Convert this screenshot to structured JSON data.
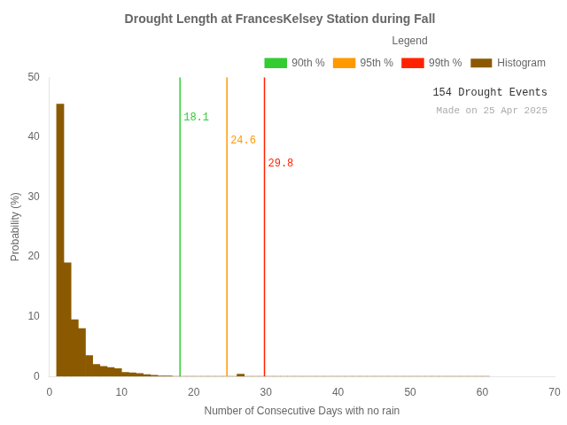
{
  "chart_data": {
    "type": "histogram",
    "title": "Drought Length at FrancesKelsey Station during Fall",
    "xlabel": "Number of Consecutive Days with no rain",
    "ylabel": "Probability (%)",
    "name": "Histogram",
    "color": "#8B5A00",
    "bins": [
      1,
      2,
      3,
      4,
      5,
      6,
      7,
      8,
      9,
      10,
      11,
      12,
      13,
      14,
      15,
      16,
      17,
      18,
      19,
      20,
      21,
      22,
      23,
      24,
      25,
      26,
      27,
      28,
      29,
      30,
      31,
      32,
      33,
      34,
      35,
      36,
      37,
      38,
      39,
      40,
      41,
      42,
      43,
      44,
      45,
      46,
      47,
      48,
      49,
      50,
      51,
      52,
      53,
      54,
      55,
      56,
      57,
      58,
      59,
      60,
      61
    ],
    "values": [
      45.5,
      19.0,
      9.5,
      8.0,
      3.5,
      2.0,
      1.7,
      1.5,
      1.3,
      0.7,
      0.6,
      0.5,
      0.3,
      0.2,
      0.1,
      0.1,
      0.0,
      0.0,
      0.0,
      0.0,
      0.0,
      0.0,
      0.0,
      0.0,
      0.0,
      0.4,
      0.0,
      0.0,
      0.0,
      0.0,
      0.0,
      0.0,
      0.0,
      0.0,
      0.0,
      0.0,
      0.0,
      0.0,
      0.0,
      0.0,
      0.0,
      0.0,
      0.0,
      0.0,
      0.0,
      0.0,
      0.0,
      0.0,
      0.0,
      0.0,
      0.0,
      0.0,
      0.0,
      0.0,
      0.0,
      0.0,
      0.0,
      0.0,
      0.0,
      0.0
    ],
    "lines": [
      {
        "name": "90th %",
        "x": 18.1,
        "color": "#33CC33"
      },
      {
        "name": "95th %",
        "x": 24.6,
        "color": "#FF9900"
      },
      {
        "name": "99th %",
        "x": 29.8,
        "color": "#FF2200"
      }
    ],
    "xlim": [
      0,
      70
    ],
    "ylim": [
      0,
      50
    ],
    "xticks": [
      0,
      10,
      20,
      30,
      40,
      50,
      60,
      70
    ],
    "yticks": [
      0,
      10,
      20,
      30,
      40,
      50
    ],
    "grid": false,
    "legend": "upper right",
    "legend_title": "Legend",
    "annotations": [
      {
        "text": "154 Drought Events"
      },
      {
        "text": "Made on 25 Apr 2025",
        "color": "#AAAAAA"
      }
    ]
  }
}
